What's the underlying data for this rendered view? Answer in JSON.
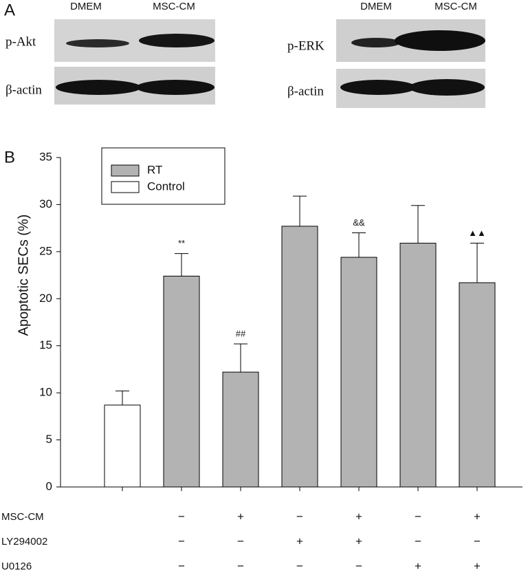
{
  "panel_a": {
    "label": "A",
    "columns": [
      "DMEM",
      "MSC-CM"
    ],
    "left_blots": [
      "p-Akt",
      "β-actin"
    ],
    "right_blots": [
      "p-ERK",
      "β-actin"
    ]
  },
  "chart_data": {
    "type": "bar",
    "panel_label": "B",
    "ylabel": "Apoptotic SECs (%)",
    "categories": [
      null,
      null,
      null,
      null,
      null,
      null,
      null
    ],
    "ylim": [
      0,
      35
    ],
    "yticks": [
      0,
      5,
      10,
      15,
      20,
      25,
      30,
      35
    ],
    "legend": "upper left",
    "series": [
      {
        "name": "RT",
        "color": "#b3b3b3",
        "values": [
          null,
          22.4,
          12.2,
          27.7,
          24.4,
          25.9,
          21.7
        ],
        "errors": [
          null,
          2.4,
          3.0,
          3.2,
          2.6,
          4.0,
          4.2
        ],
        "annotations": [
          null,
          "**",
          "##",
          null,
          "&&",
          null,
          "▲▲"
        ]
      },
      {
        "name": "Control",
        "color": "#ffffff",
        "values": [
          8.7,
          null,
          null,
          null,
          null,
          null,
          null
        ],
        "errors": [
          1.5,
          null,
          null,
          null,
          null,
          null,
          null
        ]
      }
    ],
    "treatments": [
      {
        "name": "MSC-CM",
        "signs": [
          null,
          "−",
          "+",
          "−",
          "+",
          "−",
          "+"
        ]
      },
      {
        "name": "LY294002",
        "signs": [
          null,
          "−",
          "−",
          "+",
          "+",
          "−",
          "−"
        ]
      },
      {
        "name": "U0126",
        "signs": [
          null,
          "−",
          "−",
          "−",
          "−",
          "+",
          "+"
        ]
      }
    ]
  }
}
